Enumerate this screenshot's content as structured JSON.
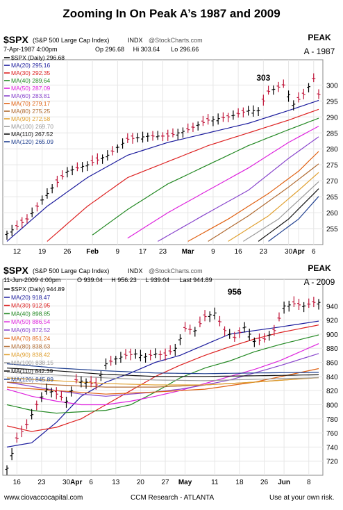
{
  "title": "Zooming In On Peak A’s 1987 and 2009",
  "footer": {
    "left": "www.ciovaccocapital.com",
    "center": "CCM Research - ATLANTA",
    "right": "Use at your own risk."
  },
  "chart_data": [
    {
      "type": "line",
      "symbol": "$SPX",
      "index_name": "(S&P 500 Large Cap Index)",
      "exchange": "INDX",
      "source": "@StockCharts.com",
      "date_line": "7-Apr-1987 4:00pm",
      "ohlc_line": [
        "Op 296.68",
        "Hi 303.64",
        "Lo 296.66"
      ],
      "legend": [
        {
          "label": "$SPX (Daily) 296.68",
          "color": "#000000"
        },
        {
          "label": "MA(20) 295.16",
          "color": "#1a1a9c"
        },
        {
          "label": "MA(30) 292.35",
          "color": "#dd2222"
        },
        {
          "label": "MA(40) 289.64",
          "color": "#228822"
        },
        {
          "label": "MA(50) 287.09",
          "color": "#dd22dd"
        },
        {
          "label": "MA(60) 283.81",
          "color": "#8844cc"
        },
        {
          "label": "MA(70) 279.17",
          "color": "#e06010"
        },
        {
          "label": "MA(80) 275.25",
          "color": "#b06a30"
        },
        {
          "label": "MA(90) 272.58",
          "color": "#e0a030"
        },
        {
          "label": "MA(100) 269.70",
          "color": "#999999"
        },
        {
          "label": "MA(110) 267.52",
          "color": "#111111"
        },
        {
          "label": "MA(120) 265.09",
          "color": "#1f3f8f"
        }
      ],
      "peak_label": [
        "PEAK",
        "A - 1987"
      ],
      "annotation": "303",
      "y_ticks": [
        255,
        260,
        265,
        270,
        275,
        280,
        285,
        290,
        295,
        300
      ],
      "ylim": [
        250,
        304
      ],
      "x_ticks": [
        {
          "label": "12",
          "idx": 2,
          "bold": false
        },
        {
          "label": "19",
          "idx": 7,
          "bold": false
        },
        {
          "label": "26",
          "idx": 12,
          "bold": false
        },
        {
          "label": "Feb",
          "idx": 17,
          "bold": true
        },
        {
          "label": "9",
          "idx": 22,
          "bold": false
        },
        {
          "label": "17",
          "idx": 27,
          "bold": false
        },
        {
          "label": "23",
          "idx": 31,
          "bold": false
        },
        {
          "label": "Mar",
          "idx": 36,
          "bold": true
        },
        {
          "label": "9",
          "idx": 41,
          "bold": false
        },
        {
          "label": "16",
          "idx": 46,
          "bold": false
        },
        {
          "label": "23",
          "idx": 51,
          "bold": false
        },
        {
          "label": "30",
          "idx": 56,
          "bold": false
        },
        {
          "label": "Apr",
          "idx": 58,
          "bold": true
        },
        {
          "label": "6",
          "idx": 61,
          "bold": false
        }
      ],
      "n_bars": 63,
      "close_anchors": [
        [
          0,
          253.5
        ],
        [
          4,
          258
        ],
        [
          8,
          266
        ],
        [
          12,
          273
        ],
        [
          16,
          275
        ],
        [
          20,
          278
        ],
        [
          24,
          283
        ],
        [
          28,
          284
        ],
        [
          32,
          284
        ],
        [
          36,
          286
        ],
        [
          40,
          289
        ],
        [
          44,
          290
        ],
        [
          48,
          292
        ],
        [
          50,
          292
        ],
        [
          52,
          298
        ],
        [
          55,
          300
        ],
        [
          57,
          294
        ],
        [
          59,
          297
        ],
        [
          61,
          302
        ],
        [
          62,
          297
        ]
      ],
      "ma_anchors": {
        "MA(20)": [
          [
            0,
            251
          ],
          [
            8,
            262
          ],
          [
            16,
            271
          ],
          [
            24,
            278
          ],
          [
            32,
            282
          ],
          [
            40,
            285
          ],
          [
            48,
            288
          ],
          [
            56,
            292
          ],
          [
            62,
            295.2
          ]
        ],
        "MA(30)": [
          [
            8,
            251
          ],
          [
            16,
            262
          ],
          [
            24,
            271
          ],
          [
            32,
            276
          ],
          [
            40,
            281
          ],
          [
            48,
            285
          ],
          [
            56,
            289
          ],
          [
            62,
            292.4
          ]
        ],
        "MA(40)": [
          [
            17,
            253
          ],
          [
            24,
            261
          ],
          [
            32,
            269
          ],
          [
            40,
            275
          ],
          [
            48,
            281
          ],
          [
            56,
            286
          ],
          [
            62,
            289.6
          ]
        ],
        "MA(50)": [
          [
            24,
            252
          ],
          [
            32,
            260
          ],
          [
            40,
            267
          ],
          [
            48,
            274
          ],
          [
            56,
            282
          ],
          [
            62,
            287.1
          ]
        ],
        "MA(60)": [
          [
            30,
            251
          ],
          [
            40,
            260
          ],
          [
            48,
            267
          ],
          [
            56,
            277
          ],
          [
            62,
            283.8
          ]
        ],
        "MA(70)": [
          [
            36,
            251
          ],
          [
            44,
            258
          ],
          [
            52,
            266
          ],
          [
            58,
            273
          ],
          [
            62,
            279.2
          ]
        ],
        "MA(80)": [
          [
            40,
            251
          ],
          [
            48,
            259
          ],
          [
            56,
            268
          ],
          [
            62,
            275.3
          ]
        ],
        "MA(90)": [
          [
            44,
            251
          ],
          [
            52,
            259
          ],
          [
            58,
            267
          ],
          [
            62,
            272.6
          ]
        ],
        "MA(100)": [
          [
            47,
            251
          ],
          [
            54,
            258
          ],
          [
            62,
            269.7
          ]
        ],
        "MA(110)": [
          [
            50,
            251
          ],
          [
            56,
            258
          ],
          [
            62,
            267.5
          ]
        ],
        "MA(120)": [
          [
            52,
            251
          ],
          [
            58,
            258
          ],
          [
            62,
            265.1
          ]
        ]
      }
    },
    {
      "type": "line",
      "symbol": "$SPX",
      "index_name": "(S&P 500 Large Cap Index)",
      "exchange": "INDX",
      "source": "@StockCharts.com",
      "date_line": "11-Jun-2009 4:00pm",
      "ohlc_line": [
        "O 939.04",
        "H 956.23",
        "L 939.04",
        "Last 944.89"
      ],
      "legend": [
        {
          "label": "$SPX (Daily) 944.89",
          "color": "#000000"
        },
        {
          "label": "MA(20) 918.47",
          "color": "#1a1a9c"
        },
        {
          "label": "MA(30) 912.95",
          "color": "#dd2222"
        },
        {
          "label": "MA(40) 898.85",
          "color": "#228822"
        },
        {
          "label": "MA(50) 886.54",
          "color": "#dd22dd"
        },
        {
          "label": "MA(60) 872.52",
          "color": "#8844cc"
        },
        {
          "label": "MA(70) 851.24",
          "color": "#e06010"
        },
        {
          "label": "MA(80) 838.63",
          "color": "#b06a30"
        },
        {
          "label": "MA(90) 838.42",
          "color": "#e0a030"
        },
        {
          "label": "MA(100) 838.15",
          "color": "#999999"
        },
        {
          "label": "MA(110) 842.39",
          "color": "#111111"
        },
        {
          "label": "MA(120) 845.89",
          "color": "#1f3f8f"
        }
      ],
      "peak_label": [
        "PEAK",
        "A - 2009"
      ],
      "annotation": "956",
      "y_ticks": [
        720,
        740,
        760,
        780,
        800,
        820,
        840,
        860,
        880,
        900,
        920,
        940
      ],
      "ylim": [
        700,
        960
      ],
      "x_ticks": [
        {
          "label": "16",
          "idx": 2,
          "bold": false
        },
        {
          "label": "23",
          "idx": 7,
          "bold": false
        },
        {
          "label": "30",
          "idx": 12,
          "bold": false
        },
        {
          "label": "Apr",
          "idx": 14,
          "bold": true
        },
        {
          "label": "6",
          "idx": 17,
          "bold": false
        },
        {
          "label": "13",
          "idx": 22,
          "bold": false
        },
        {
          "label": "20",
          "idx": 27,
          "bold": false
        },
        {
          "label": "27",
          "idx": 32,
          "bold": false
        },
        {
          "label": "May",
          "idx": 36,
          "bold": true
        },
        {
          "label": "11",
          "idx": 42,
          "bold": false
        },
        {
          "label": "18",
          "idx": 47,
          "bold": false
        },
        {
          "label": "26",
          "idx": 52,
          "bold": false
        },
        {
          "label": "Jun",
          "idx": 56,
          "bold": true
        },
        {
          "label": "8",
          "idx": 61,
          "bold": false
        }
      ],
      "n_bars": 64,
      "close_anchors": [
        [
          0,
          710
        ],
        [
          2,
          752
        ],
        [
          4,
          772
        ],
        [
          6,
          800
        ],
        [
          8,
          822
        ],
        [
          10,
          815
        ],
        [
          12,
          805
        ],
        [
          14,
          835
        ],
        [
          16,
          832
        ],
        [
          18,
          828
        ],
        [
          20,
          858
        ],
        [
          22,
          865
        ],
        [
          24,
          870
        ],
        [
          26,
          872
        ],
        [
          28,
          868
        ],
        [
          30,
          872
        ],
        [
          32,
          870
        ],
        [
          34,
          880
        ],
        [
          36,
          908
        ],
        [
          38,
          905
        ],
        [
          40,
          925
        ],
        [
          42,
          930
        ],
        [
          44,
          905
        ],
        [
          46,
          895
        ],
        [
          48,
          910
        ],
        [
          50,
          890
        ],
        [
          52,
          893
        ],
        [
          54,
          905
        ],
        [
          56,
          940
        ],
        [
          58,
          943
        ],
        [
          60,
          940
        ],
        [
          62,
          945
        ],
        [
          63,
          945
        ]
      ],
      "ma_anchors": {
        "MA(20)": [
          [
            0,
            740
          ],
          [
            5,
            746
          ],
          [
            10,
            775
          ],
          [
            15,
            812
          ],
          [
            20,
            832
          ],
          [
            25,
            845
          ],
          [
            30,
            860
          ],
          [
            35,
            870
          ],
          [
            40,
            885
          ],
          [
            45,
            900
          ],
          [
            50,
            905
          ],
          [
            55,
            910
          ],
          [
            63,
            918.5
          ]
        ],
        "MA(30)": [
          [
            0,
            770
          ],
          [
            5,
            762
          ],
          [
            10,
            768
          ],
          [
            15,
            780
          ],
          [
            20,
            800
          ],
          [
            25,
            820
          ],
          [
            30,
            840
          ],
          [
            35,
            856
          ],
          [
            40,
            870
          ],
          [
            45,
            882
          ],
          [
            50,
            893
          ],
          [
            55,
            902
          ],
          [
            63,
            913
          ]
        ],
        "MA(40)": [
          [
            0,
            800
          ],
          [
            5,
            792
          ],
          [
            10,
            788
          ],
          [
            15,
            790
          ],
          [
            20,
            792
          ],
          [
            25,
            800
          ],
          [
            30,
            818
          ],
          [
            35,
            838
          ],
          [
            40,
            852
          ],
          [
            45,
            862
          ],
          [
            50,
            875
          ],
          [
            55,
            885
          ],
          [
            63,
            898.9
          ]
        ],
        "MA(50)": [
          [
            0,
            822
          ],
          [
            5,
            812
          ],
          [
            10,
            805
          ],
          [
            15,
            800
          ],
          [
            20,
            800
          ],
          [
            25,
            805
          ],
          [
            30,
            812
          ],
          [
            35,
            820
          ],
          [
            40,
            830
          ],
          [
            45,
            840
          ],
          [
            50,
            850
          ],
          [
            55,
            862
          ],
          [
            63,
            886.5
          ]
        ],
        "MA(60)": [
          [
            0,
            832
          ],
          [
            5,
            826
          ],
          [
            10,
            820
          ],
          [
            15,
            815
          ],
          [
            20,
            812
          ],
          [
            25,
            815
          ],
          [
            30,
            818
          ],
          [
            35,
            822
          ],
          [
            40,
            828
          ],
          [
            45,
            835
          ],
          [
            50,
            845
          ],
          [
            55,
            855
          ],
          [
            63,
            872.5
          ]
        ],
        "MA(70)": [
          [
            0,
            825
          ],
          [
            10,
            820
          ],
          [
            20,
            815
          ],
          [
            30,
            818
          ],
          [
            40,
            822
          ],
          [
            50,
            832
          ],
          [
            63,
            851.2
          ]
        ],
        "MA(80)": [
          [
            0,
            832
          ],
          [
            10,
            828
          ],
          [
            20,
            825
          ],
          [
            30,
            825
          ],
          [
            40,
            828
          ],
          [
            50,
            832
          ],
          [
            63,
            838.6
          ]
        ],
        "MA(90)": [
          [
            0,
            838
          ],
          [
            10,
            834
          ],
          [
            20,
            830
          ],
          [
            30,
            828
          ],
          [
            40,
            828
          ],
          [
            50,
            832
          ],
          [
            63,
            838.4
          ]
        ],
        "MA(100)": [
          [
            0,
            846
          ],
          [
            10,
            842
          ],
          [
            20,
            838
          ],
          [
            30,
            835
          ],
          [
            40,
            834
          ],
          [
            50,
            836
          ],
          [
            63,
            838.2
          ]
        ],
        "MA(110)": [
          [
            0,
            852
          ],
          [
            10,
            848
          ],
          [
            20,
            843
          ],
          [
            30,
            840
          ],
          [
            40,
            840
          ],
          [
            50,
            841
          ],
          [
            63,
            842.4
          ]
        ],
        "MA(120)": [
          [
            0,
            858
          ],
          [
            10,
            852
          ],
          [
            20,
            848
          ],
          [
            30,
            845
          ],
          [
            40,
            844
          ],
          [
            50,
            845
          ],
          [
            63,
            845.9
          ]
        ]
      }
    }
  ]
}
